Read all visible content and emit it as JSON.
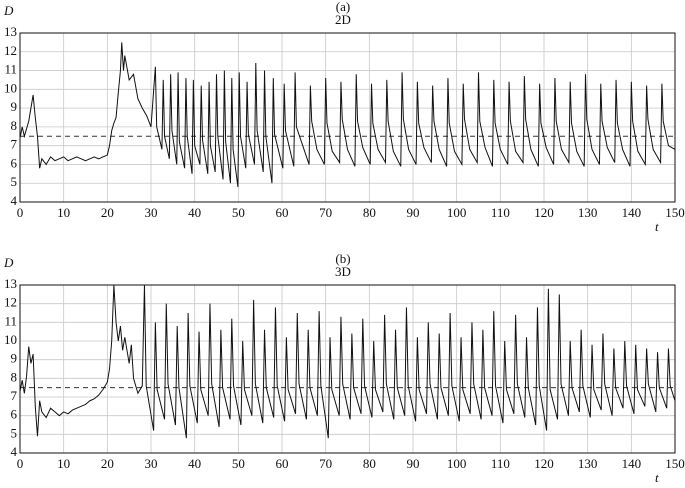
{
  "chart_data": [
    {
      "type": "line",
      "title": "(a)",
      "subtitle": "2D",
      "y_label": "D",
      "x_label": "t",
      "color": "#111111",
      "xlim": [
        0,
        150
      ],
      "ylim": [
        4,
        13
      ],
      "xticks": [
        0,
        10,
        20,
        30,
        40,
        50,
        60,
        70,
        80,
        90,
        100,
        110,
        120,
        130,
        140,
        150
      ],
      "yticks": [
        4,
        5,
        6,
        7,
        8,
        9,
        10,
        11,
        12,
        13
      ],
      "grid": true,
      "reference_line": 7.5,
      "x": [
        0,
        0.5,
        1,
        1.5,
        2,
        2.5,
        3,
        3.5,
        4,
        4.5,
        5,
        6,
        7,
        8,
        9,
        10,
        11,
        12,
        13,
        14,
        15,
        16,
        17,
        18,
        19,
        20,
        20.5,
        21,
        21.5,
        22,
        22.5,
        23,
        23.3,
        23.7,
        24,
        25,
        26,
        27,
        28,
        29,
        30,
        31,
        31.3,
        32.5,
        32.8,
        33.1,
        34.2,
        34.5,
        34.8,
        35.9,
        36.2,
        36.5,
        37.7,
        38,
        38.3,
        39.4,
        39.7,
        40,
        41.2,
        41.5,
        41.8,
        43,
        43.3,
        43.6,
        44.7,
        45,
        45.3,
        46.5,
        46.8,
        47.1,
        48.2,
        48.5,
        48.8,
        49.9,
        50.2,
        50.5,
        51.7,
        52,
        52.3,
        53.7,
        54,
        54.3,
        55.7,
        56,
        56.3,
        57.7,
        58,
        58.3,
        60.2,
        60.5,
        60.8,
        62.7,
        63,
        63.3,
        66.2,
        66.5,
        66.8,
        68,
        69.7,
        70,
        70.3,
        71.5,
        73.2,
        73.5,
        73.8,
        75,
        76.7,
        77,
        77.3,
        78.5,
        80.2,
        80.5,
        80.8,
        82,
        83.7,
        84,
        84.3,
        85.5,
        87.2,
        87.5,
        87.8,
        89,
        90.7,
        91,
        91.3,
        92.5,
        94.2,
        94.5,
        94.8,
        96,
        97.7,
        98,
        98.3,
        99.5,
        101.2,
        101.5,
        101.8,
        103,
        104.7,
        105,
        105.3,
        106.5,
        108.2,
        108.5,
        108.8,
        110,
        111.7,
        112,
        112.3,
        113.5,
        115.2,
        115.5,
        115.8,
        117,
        118.7,
        119,
        119.3,
        120.5,
        122.2,
        122.5,
        122.8,
        124,
        125.7,
        126,
        126.3,
        127.5,
        129.2,
        129.5,
        129.8,
        131,
        132.7,
        133,
        133.3,
        134.5,
        136.2,
        136.5,
        136.8,
        138,
        139.7,
        140,
        140.3,
        141.5,
        143.2,
        143.5,
        143.8,
        145,
        146.7,
        147,
        147.3,
        148.5,
        150
      ],
      "values": [
        7.4,
        8.0,
        7.5,
        7.9,
        8.3,
        9.0,
        9.7,
        8.5,
        7.5,
        5.8,
        6.3,
        6.0,
        6.4,
        6.2,
        6.3,
        6.4,
        6.2,
        6.3,
        6.4,
        6.3,
        6.2,
        6.3,
        6.4,
        6.3,
        6.4,
        6.5,
        7.0,
        7.8,
        8.2,
        8.5,
        9.8,
        11.0,
        12.5,
        11.0,
        11.8,
        10.5,
        10.8,
        9.5,
        9.0,
        8.6,
        8.0,
        11.2,
        8.0,
        6.8,
        10.5,
        7.5,
        6.3,
        10.8,
        7.8,
        6.0,
        10.9,
        7.2,
        5.8,
        10.6,
        7.5,
        5.5,
        10.5,
        7.0,
        6.0,
        10.2,
        7.3,
        5.5,
        10.4,
        7.0,
        5.6,
        10.8,
        7.5,
        5.2,
        11.0,
        7.2,
        5.0,
        10.6,
        6.8,
        4.8,
        10.9,
        7.5,
        5.8,
        10.4,
        7.6,
        6.0,
        11.4,
        7.8,
        5.6,
        11.0,
        7.5,
        5.0,
        10.6,
        7.6,
        5.8,
        10.3,
        7.8,
        5.9,
        10.9,
        8.0,
        6.0,
        10.2,
        8.3,
        6.8,
        6.0,
        10.6,
        8.2,
        6.7,
        6.1,
        10.4,
        8.4,
        6.8,
        5.9,
        10.8,
        8.3,
        6.9,
        6.0,
        10.3,
        8.2,
        6.8,
        6.1,
        10.5,
        8.3,
        6.7,
        5.9,
        10.9,
        8.4,
        6.8,
        6.0,
        10.4,
        8.2,
        6.9,
        6.1,
        10.2,
        8.3,
        6.8,
        5.9,
        10.6,
        8.2,
        6.7,
        6.0,
        10.3,
        8.4,
        6.8,
        6.1,
        10.9,
        8.3,
        6.9,
        5.9,
        10.5,
        8.2,
        6.8,
        6.0,
        10.4,
        8.3,
        6.7,
        6.1,
        10.7,
        8.4,
        6.8,
        5.9,
        10.3,
        8.2,
        6.9,
        6.0,
        10.6,
        8.3,
        6.8,
        6.1,
        10.4,
        8.2,
        6.7,
        5.9,
        10.8,
        8.4,
        6.8,
        6.0,
        10.3,
        8.3,
        6.9,
        6.1,
        10.5,
        8.2,
        6.8,
        5.9,
        10.4,
        8.3,
        6.7,
        6.0,
        10.2,
        8.4,
        6.8,
        6.1,
        10.3,
        8.3,
        7.0,
        6.8
      ]
    },
    {
      "type": "line",
      "title": "(b)",
      "subtitle": "3D",
      "y_label": "D",
      "x_label": "t",
      "color": "#111111",
      "xlim": [
        0,
        150
      ],
      "ylim": [
        4,
        13
      ],
      "xticks": [
        0,
        10,
        20,
        30,
        40,
        50,
        60,
        70,
        80,
        90,
        100,
        110,
        120,
        130,
        140,
        150
      ],
      "yticks": [
        4,
        5,
        6,
        7,
        8,
        9,
        10,
        11,
        12,
        13
      ],
      "grid": true,
      "reference_line": 7.5,
      "x": [
        0,
        0.5,
        1,
        1.5,
        2,
        2.5,
        3,
        3.5,
        4,
        4.5,
        5,
        6,
        7,
        8,
        9,
        10,
        11,
        12,
        13,
        14,
        15,
        16,
        17,
        18,
        19,
        20,
        20.5,
        21,
        21.5,
        22,
        22.5,
        23,
        23.5,
        24,
        25,
        25.5,
        26,
        27,
        28,
        28.5,
        28.9,
        30.6,
        31,
        31.4,
        33.1,
        33.5,
        33.9,
        35.6,
        36,
        36.4,
        38.1,
        38.5,
        38.9,
        40.6,
        41,
        41.4,
        43.1,
        43.5,
        43.9,
        45.6,
        46,
        46.4,
        48.1,
        48.5,
        48.9,
        50.6,
        51,
        51.4,
        53.1,
        53.5,
        53.9,
        55.6,
        56,
        56.4,
        58.1,
        58.5,
        58.9,
        60.6,
        61,
        61.4,
        63.1,
        63.5,
        63.9,
        65.6,
        66,
        66.4,
        68.1,
        68.5,
        68.9,
        70.6,
        71,
        71.4,
        73.1,
        73.5,
        73.9,
        75.6,
        76,
        76.4,
        78.1,
        78.5,
        78.9,
        80.6,
        81,
        81.4,
        83.1,
        83.5,
        83.9,
        85.6,
        86,
        86.4,
        88.1,
        88.5,
        88.9,
        90.6,
        91,
        91.4,
        93.1,
        93.5,
        93.9,
        95.6,
        96,
        96.4,
        98.1,
        98.5,
        98.9,
        100.6,
        101,
        101.4,
        103.1,
        103.5,
        103.9,
        105.6,
        106,
        106.4,
        108.1,
        108.5,
        108.9,
        110.6,
        111,
        111.4,
        113.1,
        113.5,
        113.9,
        115.6,
        116,
        116.4,
        118.1,
        118.5,
        118.9,
        120.6,
        121,
        121.4,
        123.1,
        123.5,
        123.9,
        125.6,
        126,
        126.4,
        128.1,
        128.5,
        128.9,
        130.6,
        131,
        131.4,
        133.1,
        133.5,
        133.9,
        135.6,
        136,
        136.4,
        138.1,
        138.5,
        138.9,
        140.6,
        141,
        141.4,
        143.1,
        143.5,
        143.9,
        145.6,
        146,
        146.4,
        148.1,
        148.5,
        148.9,
        150
      ],
      "values": [
        7.3,
        7.9,
        7.2,
        8.1,
        9.7,
        8.8,
        9.3,
        6.5,
        4.9,
        6.8,
        6.2,
        5.9,
        6.4,
        6.2,
        6.0,
        6.2,
        6.1,
        6.3,
        6.4,
        6.5,
        6.6,
        6.8,
        6.9,
        7.1,
        7.4,
        7.8,
        8.5,
        10.0,
        13.0,
        11.0,
        10.0,
        10.8,
        9.5,
        10.2,
        8.8,
        9.8,
        8.0,
        7.2,
        7.6,
        13.0,
        7.6,
        5.2,
        11.0,
        7.4,
        5.8,
        12.0,
        7.7,
        5.5,
        10.8,
        7.5,
        4.8,
        11.5,
        7.6,
        5.6,
        10.5,
        7.4,
        6.0,
        12.0,
        7.7,
        5.4,
        10.6,
        7.5,
        5.8,
        11.2,
        7.6,
        5.5,
        10.0,
        7.4,
        6.0,
        12.2,
        7.7,
        5.6,
        10.6,
        7.5,
        5.9,
        11.8,
        7.6,
        5.7,
        10.2,
        7.4,
        6.1,
        11.5,
        7.7,
        5.8,
        10.6,
        7.5,
        6.0,
        11.6,
        7.6,
        4.8,
        10.2,
        7.4,
        6.0,
        11.3,
        7.7,
        5.8,
        10.4,
        7.5,
        6.1,
        11.2,
        7.6,
        5.9,
        10.0,
        7.4,
        6.2,
        11.4,
        7.7,
        5.8,
        10.6,
        7.5,
        6.0,
        11.8,
        7.6,
        5.7,
        10.2,
        7.4,
        6.1,
        11.0,
        7.7,
        5.8,
        10.4,
        7.5,
        6.0,
        11.5,
        7.6,
        5.7,
        10.2,
        7.4,
        6.1,
        11.0,
        7.7,
        5.8,
        10.6,
        7.5,
        6.0,
        11.6,
        7.6,
        5.6,
        10.0,
        7.4,
        6.1,
        11.4,
        7.7,
        5.9,
        10.2,
        7.5,
        5.5,
        11.8,
        7.6,
        5.2,
        12.8,
        7.4,
        5.8,
        12.5,
        7.7,
        6.0,
        10.0,
        7.5,
        6.2,
        10.6,
        7.6,
        5.9,
        9.8,
        7.4,
        6.3,
        10.4,
        7.7,
        6.0,
        9.6,
        7.5,
        6.4,
        10.0,
        7.6,
        6.1,
        9.8,
        7.4,
        6.5,
        9.6,
        7.7,
        6.2,
        9.4,
        7.5,
        6.4,
        9.6,
        7.6,
        6.8
      ]
    }
  ]
}
